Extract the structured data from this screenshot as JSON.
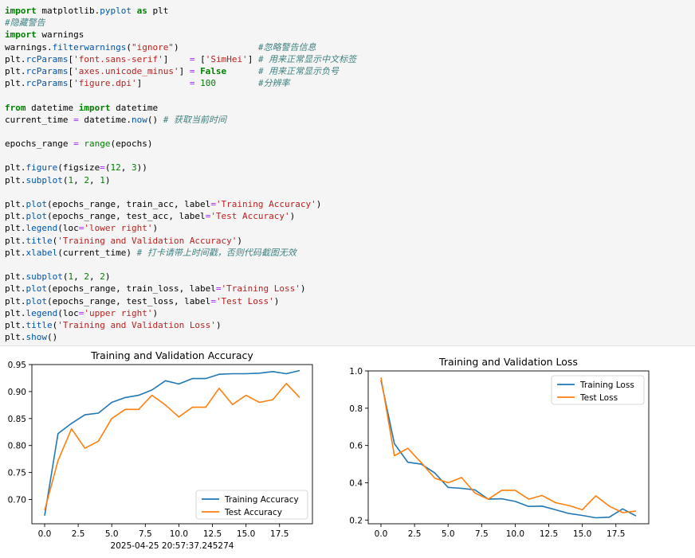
{
  "code_lines": [
    "import matplotlib.pyplot as plt",
    "#隐藏警告",
    "import warnings",
    "warnings.filterwarnings(\"ignore\")               #忽略警告信息",
    "plt.rcParams['font.sans-serif']    = ['SimHei'] # 用来正常显示中文标签",
    "plt.rcParams['axes.unicode_minus'] = False      # 用来正常显示负号",
    "plt.rcParams['figure.dpi']         = 100        #分辨率",
    "",
    "from datetime import datetime",
    "current_time = datetime.now() # 获取当前时间",
    "",
    "epochs_range = range(epochs)",
    "",
    "plt.figure(figsize=(12, 3))",
    "plt.subplot(1, 2, 1)",
    "",
    "plt.plot(epochs_range, train_acc, label='Training Accuracy')",
    "plt.plot(epochs_range, test_acc, label='Test Accuracy')",
    "plt.legend(loc='lower right')",
    "plt.title('Training and Validation Accuracy')",
    "plt.xlabel(current_time) # 打卡请带上时间戳，否则代码截图无效",
    "",
    "plt.subplot(1, 2, 2)",
    "plt.plot(epochs_range, train_loss, label='Training Loss')",
    "plt.plot(epochs_range, test_loss, label='Test Loss')",
    "plt.legend(loc='upper right')",
    "plt.title('Training and Validation Loss')",
    "plt.show()"
  ],
  "colors": {
    "keyword": "#008000",
    "string": "#ba2121",
    "comment": "#408080",
    "number": "#008000",
    "builtin": "#0055aa",
    "series_blue": "#1f77b4",
    "series_orange": "#ff7f0e"
  },
  "chart_data": [
    {
      "type": "line",
      "title": "Training and Validation Accuracy",
      "xlabel": "2025-04-25 20:57:37.245274",
      "ylabel": "",
      "xlim": [
        -0.95,
        19.95
      ],
      "ylim": [
        0.655,
        0.95
      ],
      "xticks": [
        0.0,
        2.5,
        5.0,
        7.5,
        10.0,
        12.5,
        15.0,
        17.5
      ],
      "xtick_labels": [
        "0.0",
        "2.5",
        "5.0",
        "7.5",
        "10.0",
        "12.5",
        "15.0",
        "17.5"
      ],
      "yticks": [
        0.7,
        0.75,
        0.8,
        0.85,
        0.9,
        0.95
      ],
      "ytick_labels": [
        "0.70",
        "0.75",
        "0.80",
        "0.85",
        "0.90",
        "0.95"
      ],
      "legend_position": "lower-right",
      "x": [
        0,
        1,
        2,
        3,
        4,
        5,
        6,
        7,
        8,
        9,
        10,
        11,
        12,
        13,
        14,
        15,
        16,
        17,
        18,
        19
      ],
      "series": [
        {
          "name": "Training Accuracy",
          "color": "#1f77b4",
          "values": [
            0.67,
            0.822,
            0.841,
            0.857,
            0.86,
            0.88,
            0.889,
            0.893,
            0.903,
            0.92,
            0.914,
            0.924,
            0.924,
            0.932,
            0.933,
            0.933,
            0.934,
            0.937,
            0.933,
            0.939
          ]
        },
        {
          "name": "Test Accuracy",
          "color": "#ff7f0e",
          "values": [
            0.68,
            0.772,
            0.831,
            0.795,
            0.808,
            0.85,
            0.867,
            0.867,
            0.893,
            0.875,
            0.853,
            0.871,
            0.871,
            0.906,
            0.876,
            0.893,
            0.88,
            0.885,
            0.915,
            0.889
          ]
        }
      ]
    },
    {
      "type": "line",
      "title": "Training and Validation Loss",
      "xlabel": "",
      "ylabel": "",
      "xlim": [
        -0.95,
        19.95
      ],
      "ylim": [
        0.18,
        1.0
      ],
      "xticks": [
        0.0,
        2.5,
        5.0,
        7.5,
        10.0,
        12.5,
        15.0,
        17.5
      ],
      "xtick_labels": [
        "0.0",
        "2.5",
        "5.0",
        "7.5",
        "10.0",
        "12.5",
        "15.0",
        "17.5"
      ],
      "yticks": [
        0.2,
        0.4,
        0.6,
        0.8,
        1.0
      ],
      "ytick_labels": [
        "0.2",
        "0.4",
        "0.6",
        "0.8",
        "1.0"
      ],
      "legend_position": "upper-right",
      "x": [
        0,
        1,
        2,
        3,
        4,
        5,
        6,
        7,
        8,
        9,
        10,
        11,
        12,
        13,
        14,
        15,
        16,
        17,
        18,
        19
      ],
      "series": [
        {
          "name": "Training Loss",
          "color": "#1f77b4",
          "values": [
            0.95,
            0.61,
            0.51,
            0.5,
            0.453,
            0.375,
            0.37,
            0.362,
            0.312,
            0.314,
            0.3,
            0.273,
            0.275,
            0.255,
            0.235,
            0.225,
            0.212,
            0.215,
            0.26,
            0.222
          ]
        },
        {
          "name": "Test Loss",
          "color": "#ff7f0e",
          "values": [
            0.965,
            0.545,
            0.585,
            0.508,
            0.425,
            0.4,
            0.428,
            0.345,
            0.312,
            0.36,
            0.36,
            0.312,
            0.332,
            0.293,
            0.278,
            0.255,
            0.33,
            0.275,
            0.24,
            0.248
          ]
        }
      ]
    }
  ]
}
